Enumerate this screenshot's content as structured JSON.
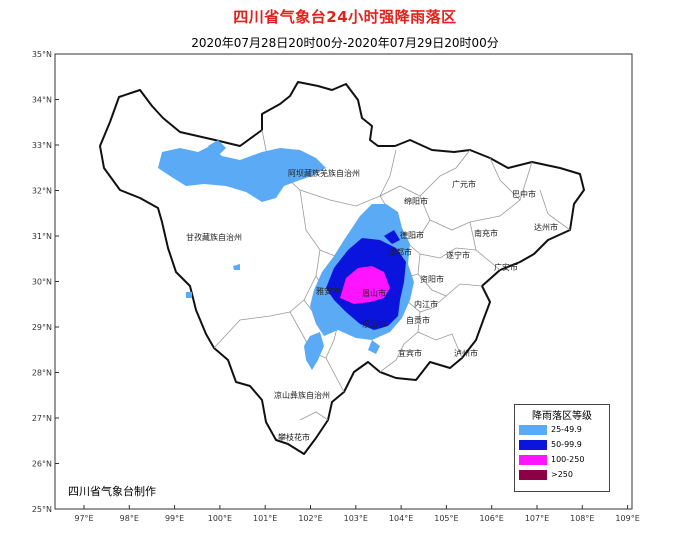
{
  "title": "四川省气象台24小时强降雨落区",
  "subtitle": "2020年07月28日20时00分-2020年07月29日20时00分",
  "credit": "四川省气象台制作",
  "axes": {
    "lat_labels": [
      "35°N",
      "34°N",
      "33°N",
      "32°N",
      "31°N",
      "30°N",
      "29°N",
      "28°N",
      "27°N",
      "26°N",
      "25°N"
    ],
    "lon_labels": [
      "97°E",
      "98°E",
      "99°E",
      "100°E",
      "101°E",
      "102°E",
      "103°E",
      "104°E",
      "105°E",
      "106°E",
      "107°E",
      "108°E",
      "109°E"
    ]
  },
  "places": [
    {
      "name": "阿坝藏族羌族自治州"
    },
    {
      "name": "甘孜藏族自治州"
    },
    {
      "name": "凉山彝族自治州"
    },
    {
      "name": "攀枝花市"
    },
    {
      "name": "广元市"
    },
    {
      "name": "巴中市"
    },
    {
      "name": "绵阳市"
    },
    {
      "name": "达州市"
    },
    {
      "name": "南充市"
    },
    {
      "name": "德阳市"
    },
    {
      "name": "成都市"
    },
    {
      "name": "遂宁市"
    },
    {
      "name": "广安市"
    },
    {
      "name": "资阳市"
    },
    {
      "name": "雅安市"
    },
    {
      "name": "眉山市"
    },
    {
      "name": "内江市"
    },
    {
      "name": "乐山市"
    },
    {
      "name": "自贡市"
    },
    {
      "name": "宜宾市"
    },
    {
      "name": "泸州市"
    }
  ],
  "legend": {
    "title": "降雨落区等级",
    "items": [
      {
        "label": "25-49.9",
        "color": "#5aaaf5"
      },
      {
        "label": "50-99.9",
        "color": "#0a14dc"
      },
      {
        "label": "100-250",
        "color": "#ff14ff"
      },
      {
        "label": ">250",
        "color": "#8c0046"
      }
    ]
  }
}
